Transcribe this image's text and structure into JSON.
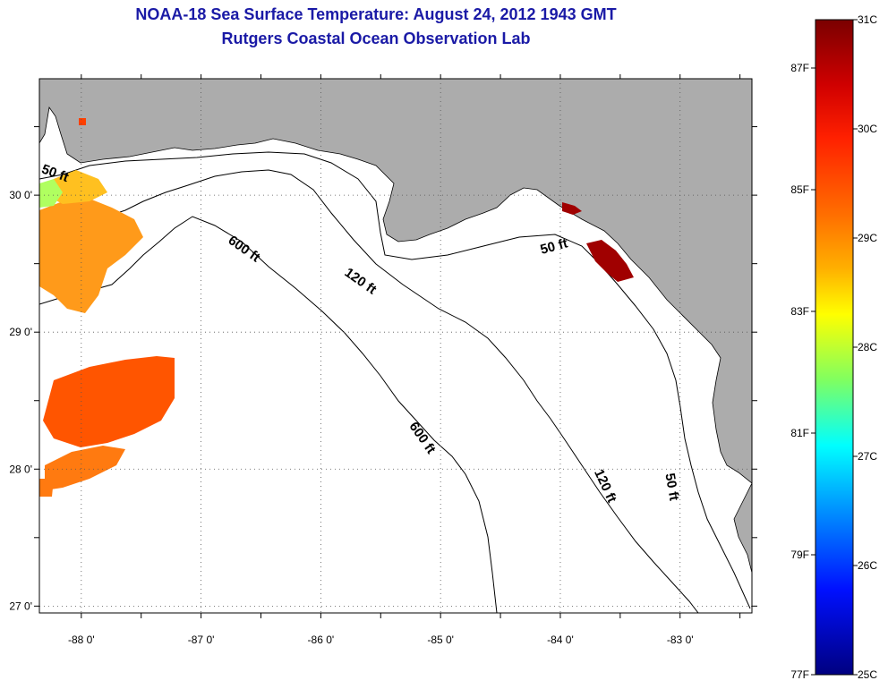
{
  "title": "NOAA-18 Sea Surface Temperature:  August 24, 2012 1943 GMT",
  "subtitle": "Rutgers Coastal Ocean Observation Lab",
  "axes": {
    "lat_labels": [
      "30 0'",
      "29 0'",
      "28 0'",
      "27 0'"
    ],
    "lat_values": [
      30,
      29,
      28,
      27
    ],
    "lon_labels": [
      "-88 0'",
      "-87 0'",
      "-86 0'",
      "-85 0'",
      "-84 0'",
      "-83 0'"
    ],
    "lon_values": [
      -88,
      -87,
      -86,
      -85,
      -84,
      -83
    ],
    "lon_range": [
      -88.35,
      -82.4
    ],
    "lat_range": [
      26.95,
      30.85
    ]
  },
  "contour_labels": [
    {
      "text": "50 ft"
    },
    {
      "text": "600 ft"
    },
    {
      "text": "120 ft"
    },
    {
      "text": "50 ft"
    },
    {
      "text": "600 ft"
    },
    {
      "text": "120 ft"
    },
    {
      "text": "50 ft"
    }
  ],
  "colorbar": {
    "celsius_labels": [
      "31C",
      "30C",
      "29C",
      "28C",
      "27C",
      "26C",
      "25C"
    ],
    "fahrenheit_labels": [
      "87F",
      "85F",
      "83F",
      "81F",
      "79F",
      "77F"
    ],
    "stops": [
      "#800000",
      "#ff0000",
      "#ff8000",
      "#ffff00",
      "#80ff80",
      "#00ffff",
      "#0080ff",
      "#0000ff",
      "#000080"
    ]
  },
  "colors": {
    "land": "#acacac",
    "water": "#ffffff",
    "title": "#1a1aa6"
  }
}
